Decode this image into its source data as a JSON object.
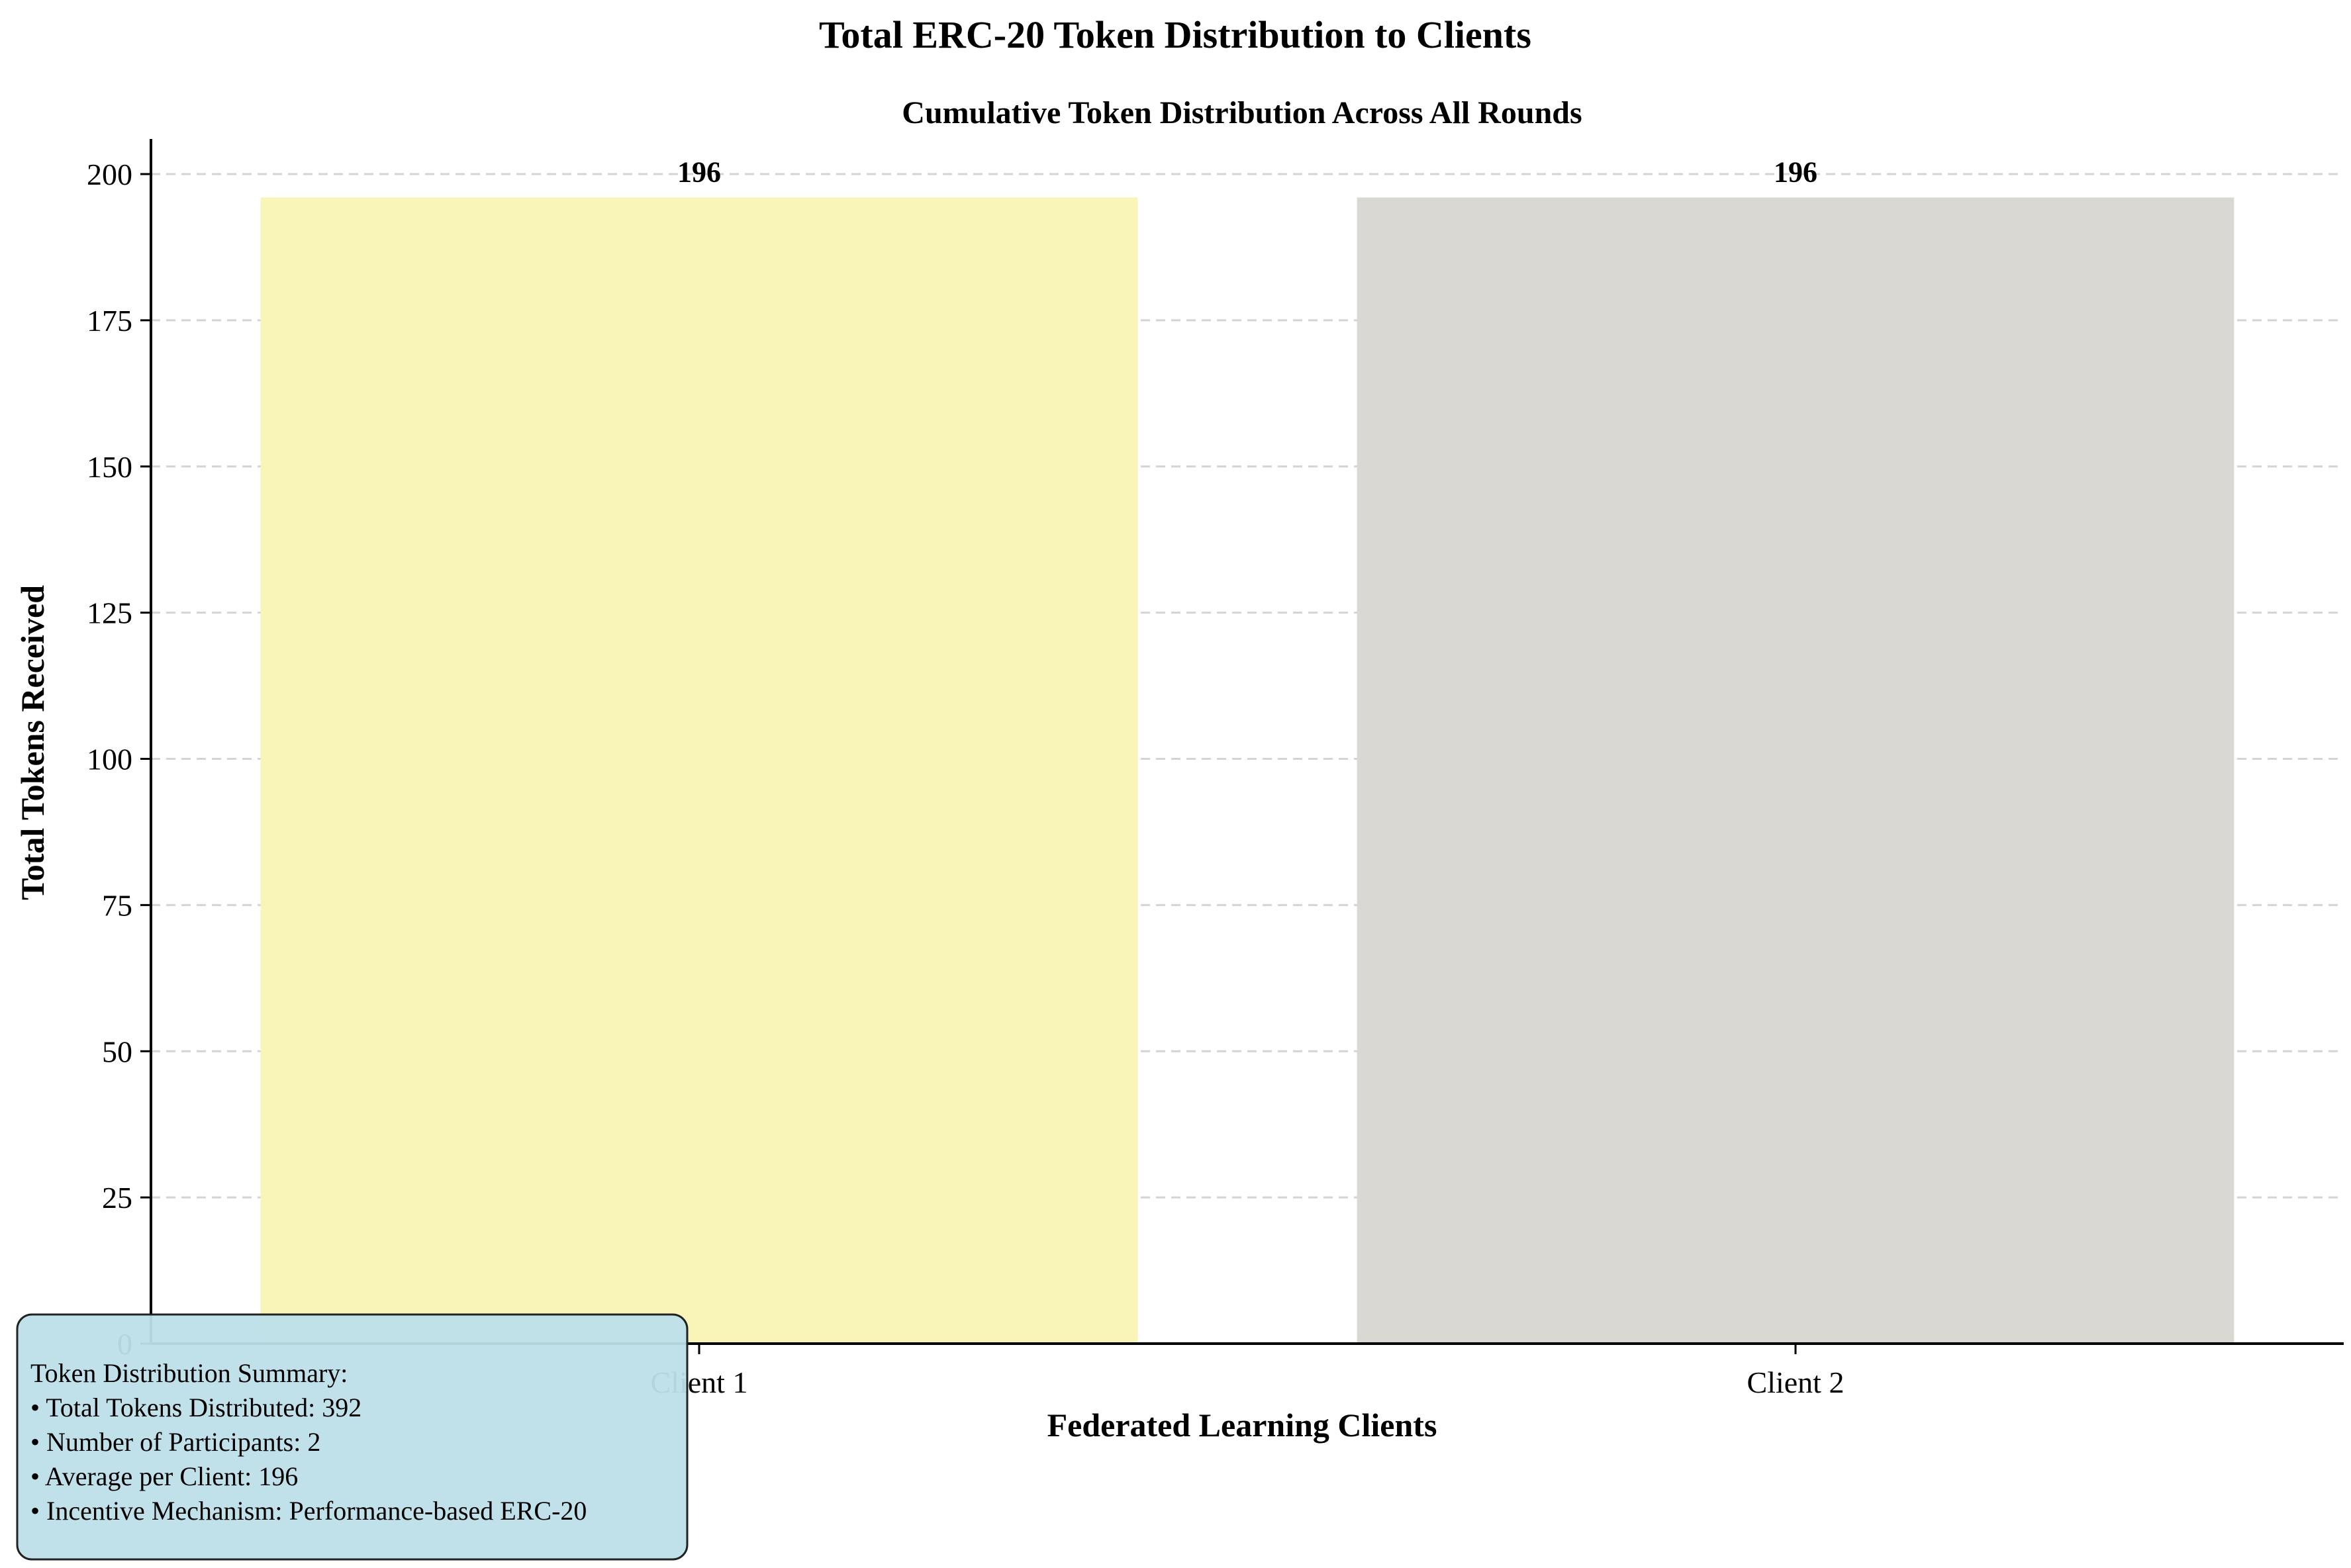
{
  "chart_data": {
    "type": "bar",
    "title": "Total ERC-20 Token Distribution to Clients",
    "subtitle": "Cumulative Token Distribution Across All Rounds",
    "xlabel": "Federated Learning Clients",
    "ylabel": "Total Tokens Received",
    "categories": [
      "Client 1",
      "Client 2"
    ],
    "values": [
      196,
      196
    ],
    "value_labels": [
      "196",
      "196"
    ],
    "bar_colors": [
      "#f9f4b7",
      "#d9d8d3"
    ],
    "ylim": [
      0,
      206
    ],
    "yticks": [
      0,
      25,
      50,
      75,
      100,
      125,
      150,
      175,
      200
    ],
    "grid": true,
    "legend": "none"
  },
  "summary": {
    "heading": "Token Distribution Summary:",
    "lines": [
      "• Total Tokens Distributed: 392",
      "• Number of Participants: 2",
      "• Average per Client: 196",
      "• Incentive Mechanism: Performance-based ERC-20"
    ],
    "background": "#bddfe9"
  }
}
